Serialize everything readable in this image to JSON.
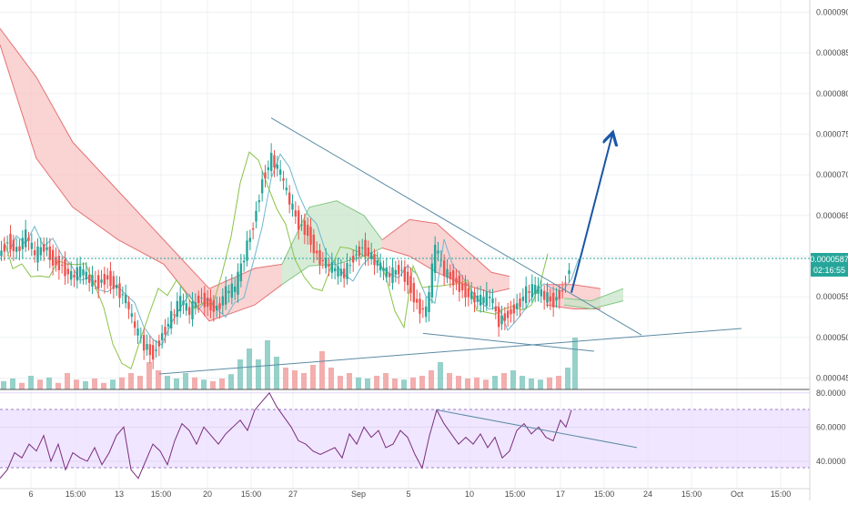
{
  "chart_data": [
    {
      "type": "candlestick",
      "title": "",
      "y_axis_ticks": [
        "0.0000900",
        "0.0000850",
        "0.0000800",
        "0.0000750",
        "0.0000700",
        "0.0000650",
        "0.0000600",
        "0.0000550",
        "0.0000500",
        "0.0000450"
      ],
      "ylim": [
        4.36e-05,
        9.15e-05
      ],
      "x_axis_ticks": [
        "6",
        "15:00",
        "13",
        "15:00",
        "20",
        "15:00",
        "27",
        "Sep",
        "5",
        "10",
        "15:00",
        "17",
        "15:00",
        "24",
        "15:00",
        "Oct",
        "15:00"
      ],
      "last_price": "0.0000587",
      "countdown": "02:16:55",
      "indicators": [
        "ichimoku cloud",
        "volume"
      ],
      "price_path": [
        [
          0,
          6e-05
        ],
        [
          10,
          6.2e-05
        ],
        [
          20,
          6.06e-05
        ],
        [
          30,
          6.25e-05
        ],
        [
          40,
          6e-05
        ],
        [
          50,
          6.12e-05
        ],
        [
          60,
          5.95e-05
        ],
        [
          70,
          5.88e-05
        ],
        [
          80,
          5.74e-05
        ],
        [
          90,
          5.82e-05
        ],
        [
          100,
          5.7e-05
        ],
        [
          110,
          5.68e-05
        ],
        [
          120,
          5.75e-05
        ],
        [
          130,
          5.6e-05
        ],
        [
          140,
          5.45e-05
        ],
        [
          150,
          5.1e-05
        ],
        [
          160,
          4.9e-05
        ],
        [
          170,
          4.8e-05
        ],
        [
          180,
          5.05e-05
        ],
        [
          190,
          5.25e-05
        ],
        [
          200,
          5.45e-05
        ],
        [
          210,
          5.3e-05
        ],
        [
          220,
          5.5e-05
        ],
        [
          230,
          5.42e-05
        ],
        [
          240,
          5.35e-05
        ],
        [
          250,
          5.55e-05
        ],
        [
          260,
          5.6e-05
        ],
        [
          270,
          6e-05
        ],
        [
          280,
          6.4e-05
        ],
        [
          290,
          6.95e-05
        ],
        [
          300,
          7.2e-05
        ],
        [
          310,
          7e-05
        ],
        [
          320,
          6.65e-05
        ],
        [
          330,
          6.4e-05
        ],
        [
          340,
          6.3e-05
        ],
        [
          350,
          6e-05
        ],
        [
          360,
          5.9e-05
        ],
        [
          370,
          5.82e-05
        ],
        [
          380,
          5.78e-05
        ],
        [
          390,
          6e-05
        ],
        [
          400,
          6.12e-05
        ],
        [
          410,
          5.98e-05
        ],
        [
          420,
          5.85e-05
        ],
        [
          430,
          5.75e-05
        ],
        [
          440,
          5.85e-05
        ],
        [
          450,
          5.7e-05
        ],
        [
          460,
          5.4e-05
        ],
        [
          470,
          5.3e-05
        ],
        [
          480,
          6.1e-05
        ],
        [
          490,
          5.8e-05
        ],
        [
          500,
          5.72e-05
        ],
        [
          510,
          5.6e-05
        ],
        [
          520,
          5.5e-05
        ],
        [
          530,
          5.45e-05
        ],
        [
          540,
          5.5e-05
        ],
        [
          550,
          5.2e-05
        ],
        [
          560,
          5.3e-05
        ],
        [
          570,
          5.4e-05
        ],
        [
          580,
          5.55e-05
        ],
        [
          590,
          5.6e-05
        ],
        [
          600,
          5.5e-05
        ],
        [
          610,
          5.45e-05
        ],
        [
          620,
          5.6e-05
        ],
        [
          628,
          5.87e-05
        ]
      ],
      "volume_bars": [
        [
          0,
          0.15
        ],
        [
          10,
          0.2
        ],
        [
          20,
          0.12
        ],
        [
          30,
          0.25
        ],
        [
          40,
          0.18
        ],
        [
          50,
          0.22
        ],
        [
          60,
          0.12
        ],
        [
          70,
          0.3
        ],
        [
          80,
          0.18
        ],
        [
          90,
          0.15
        ],
        [
          100,
          0.2
        ],
        [
          110,
          0.12
        ],
        [
          120,
          0.18
        ],
        [
          130,
          0.22
        ],
        [
          140,
          0.3
        ],
        [
          150,
          0.25
        ],
        [
          160,
          0.5
        ],
        [
          170,
          0.35
        ],
        [
          180,
          0.25
        ],
        [
          190,
          0.2
        ],
        [
          200,
          0.3
        ],
        [
          210,
          0.22
        ],
        [
          220,
          0.18
        ],
        [
          230,
          0.15
        ],
        [
          240,
          0.2
        ],
        [
          250,
          0.28
        ],
        [
          260,
          0.55
        ],
        [
          270,
          0.75
        ],
        [
          280,
          0.55
        ],
        [
          290,
          0.9
        ],
        [
          300,
          0.6
        ],
        [
          310,
          0.4
        ],
        [
          320,
          0.35
        ],
        [
          330,
          0.3
        ],
        [
          340,
          0.45
        ],
        [
          350,
          0.7
        ],
        [
          360,
          0.4
        ],
        [
          370,
          0.25
        ],
        [
          380,
          0.3
        ],
        [
          390,
          0.22
        ],
        [
          400,
          0.2
        ],
        [
          410,
          0.25
        ],
        [
          420,
          0.3
        ],
        [
          430,
          0.2
        ],
        [
          440,
          0.18
        ],
        [
          450,
          0.22
        ],
        [
          460,
          0.25
        ],
        [
          470,
          0.35
        ],
        [
          480,
          0.5
        ],
        [
          490,
          0.3
        ],
        [
          500,
          0.25
        ],
        [
          510,
          0.2
        ],
        [
          520,
          0.22
        ],
        [
          530,
          0.18
        ],
        [
          540,
          0.25
        ],
        [
          550,
          0.3
        ],
        [
          560,
          0.35
        ],
        [
          570,
          0.25
        ],
        [
          580,
          0.2
        ],
        [
          590,
          0.18
        ],
        [
          600,
          0.22
        ],
        [
          610,
          0.25
        ],
        [
          620,
          0.4
        ],
        [
          628,
          0.95
        ]
      ],
      "cloud_spans": [
        {
          "sign": "bearish",
          "upper": [
            [
              0,
              8.8e-05
            ],
            [
              40,
              8.2e-05
            ],
            [
              80,
              7.4e-05
            ],
            [
              130,
              6.8e-05
            ],
            [
              180,
              6.2e-05
            ],
            [
              230,
              5.6e-05
            ],
            [
              280,
              5.85e-05
            ],
            [
              310,
              5.9e-05
            ]
          ],
          "lower": [
            [
              0,
              8.6e-05
            ],
            [
              40,
              7.2e-05
            ],
            [
              80,
              6.6e-05
            ],
            [
              130,
              6.2e-05
            ],
            [
              180,
              5.9e-05
            ],
            [
              230,
              5.2e-05
            ],
            [
              280,
              5.4e-05
            ],
            [
              310,
              5.65e-05
            ]
          ]
        },
        {
          "sign": "bullish",
          "upper": [
            [
              310,
              5.9e-05
            ],
            [
              340,
              6.6e-05
            ],
            [
              370,
              6.68e-05
            ],
            [
              400,
              6.5e-05
            ],
            [
              420,
              6.2e-05
            ]
          ],
          "lower": [
            [
              310,
              5.65e-05
            ],
            [
              340,
              5.88e-05
            ],
            [
              370,
              5.9e-05
            ],
            [
              400,
              6e-05
            ],
            [
              420,
              6.1e-05
            ]
          ]
        },
        {
          "sign": "bearish",
          "upper": [
            [
              420,
              6.2e-05
            ],
            [
              450,
              6.45e-05
            ],
            [
              480,
              6.4e-05
            ],
            [
              510,
              6.1e-05
            ],
            [
              540,
              5.8e-05
            ],
            [
              560,
              5.75e-05
            ]
          ],
          "lower": [
            [
              420,
              6.1e-05
            ],
            [
              450,
              6e-05
            ],
            [
              480,
              5.8e-05
            ],
            [
              510,
              5.65e-05
            ],
            [
              540,
              5.55e-05
            ],
            [
              560,
              5.6e-05
            ]
          ]
        },
        {
          "sign": "bearish",
          "upper": [
            [
              600,
              5.65e-05
            ],
            [
              630,
              5.65e-05
            ],
            [
              660,
              5.6e-05
            ]
          ],
          "lower": [
            [
              600,
              5.4e-05
            ],
            [
              630,
              5.35e-05
            ],
            [
              660,
              5.35e-05
            ]
          ]
        },
        {
          "sign": "bullish",
          "upper": [
            [
              620,
              5.48e-05
            ],
            [
              650,
              5.45e-05
            ],
            [
              685,
              5.6e-05
            ]
          ],
          "lower": [
            [
              620,
              5.4e-05
            ],
            [
              650,
              5.35e-05
            ],
            [
              685,
              5.45e-05
            ]
          ]
        }
      ],
      "trendlines": [
        {
          "kind": "resistance",
          "points": [
            [
              298,
              7.7e-05
            ],
            [
              705,
              5.03e-05
            ]
          ]
        },
        {
          "kind": "support",
          "points": [
            [
              175,
              4.55e-05
            ],
            [
              815,
              5.11e-05
            ]
          ]
        },
        {
          "kind": "support",
          "points": [
            [
              465,
              5.05e-05
            ],
            [
              653,
              4.83e-05
            ]
          ]
        },
        {
          "kind": "arrow",
          "points": [
            [
              628,
              5.55e-05
            ],
            [
              673,
              7.5e-05
            ]
          ]
        }
      ]
    },
    {
      "type": "line",
      "title": "",
      "y_axis_ticks": [
        "80.0000",
        "60.0000",
        "40.0000"
      ],
      "ylim": [
        24,
        82
      ],
      "band": [
        30,
        70
      ],
      "series_points": [
        [
          0,
          30
        ],
        [
          8,
          35
        ],
        [
          16,
          45
        ],
        [
          24,
          42
        ],
        [
          32,
          50
        ],
        [
          40,
          46
        ],
        [
          48,
          55
        ],
        [
          56,
          40
        ],
        [
          64,
          50
        ],
        [
          72,
          35
        ],
        [
          80,
          45
        ],
        [
          88,
          42
        ],
        [
          96,
          40
        ],
        [
          104,
          48
        ],
        [
          112,
          38
        ],
        [
          120,
          45
        ],
        [
          128,
          55
        ],
        [
          136,
          60
        ],
        [
          144,
          35
        ],
        [
          152,
          30
        ],
        [
          160,
          40
        ],
        [
          168,
          50
        ],
        [
          176,
          46
        ],
        [
          184,
          38
        ],
        [
          192,
          52
        ],
        [
          200,
          62
        ],
        [
          208,
          58
        ],
        [
          216,
          50
        ],
        [
          224,
          60
        ],
        [
          232,
          55
        ],
        [
          240,
          50
        ],
        [
          248,
          56
        ],
        [
          256,
          60
        ],
        [
          264,
          64
        ],
        [
          272,
          58
        ],
        [
          280,
          70
        ],
        [
          288,
          75
        ],
        [
          296,
          80
        ],
        [
          304,
          72
        ],
        [
          312,
          66
        ],
        [
          320,
          60
        ],
        [
          328,
          52
        ],
        [
          336,
          50
        ],
        [
          344,
          46
        ],
        [
          352,
          44
        ],
        [
          360,
          46
        ],
        [
          368,
          48
        ],
        [
          376,
          42
        ],
        [
          384,
          56
        ],
        [
          392,
          50
        ],
        [
          400,
          60
        ],
        [
          408,
          54
        ],
        [
          416,
          58
        ],
        [
          424,
          48
        ],
        [
          432,
          50
        ],
        [
          440,
          58
        ],
        [
          448,
          54
        ],
        [
          456,
          44
        ],
        [
          464,
          36
        ],
        [
          472,
          55
        ],
        [
          480,
          70
        ],
        [
          488,
          62
        ],
        [
          496,
          56
        ],
        [
          504,
          50
        ],
        [
          512,
          54
        ],
        [
          520,
          50
        ],
        [
          528,
          56
        ],
        [
          536,
          48
        ],
        [
          544,
          54
        ],
        [
          552,
          42
        ],
        [
          560,
          46
        ],
        [
          568,
          58
        ],
        [
          576,
          62
        ],
        [
          584,
          56
        ],
        [
          592,
          60
        ],
        [
          600,
          54
        ],
        [
          608,
          52
        ],
        [
          616,
          64
        ],
        [
          622,
          60
        ],
        [
          628,
          70
        ]
      ],
      "trendline": [
        [
          480,
          70
        ],
        [
          700,
          48
        ]
      ]
    }
  ]
}
